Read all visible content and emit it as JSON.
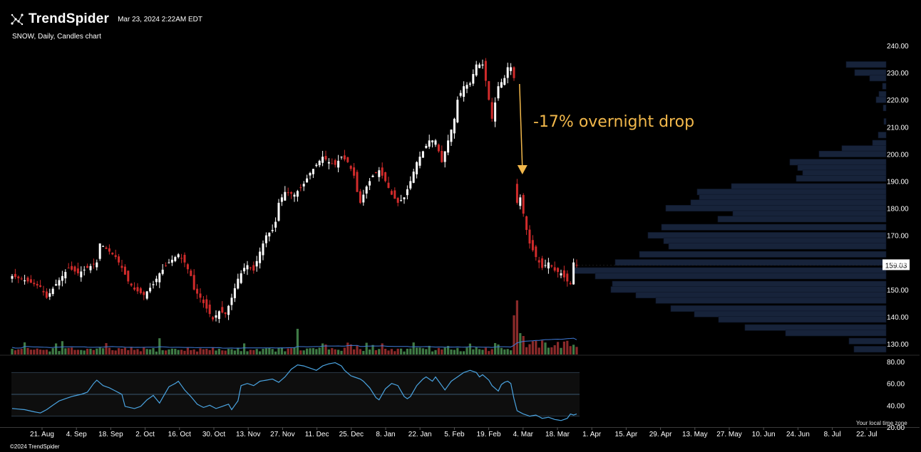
{
  "header": {
    "brand": "TrendSpider",
    "timestamp": "Mar 23, 2024 2:22AM EDT",
    "subtitle": "SNOW, Daily, Candles chart"
  },
  "footer": {
    "copyright": "©2024 TrendSpider",
    "timezone_label": "Your local time zone"
  },
  "colors": {
    "background": "#000000",
    "bull": "#ffffff",
    "bear": "#d12b2b",
    "volume_up": "#3f7a45",
    "volume_down": "#8a2a2a",
    "volume_ma": "#3f7bd8",
    "rsi_line": "#4aa3e0",
    "volume_profile": "#17233a",
    "annotation": "#f2b84b"
  },
  "chart_data": {
    "type": "candlestick",
    "symbol": "SNOW",
    "timeframe": "Daily",
    "price_axis": {
      "ticks": [
        "240.00",
        "230.00",
        "220.00",
        "210.00",
        "200.00",
        "190.00",
        "180.00",
        "170.00",
        "160.00",
        "150.00",
        "140.00",
        "130.00"
      ],
      "range": [
        123,
        242
      ],
      "last_price": "159.03"
    },
    "rsi_axis": {
      "ticks": [
        "80.00",
        "60.00",
        "40.00",
        "20.00"
      ],
      "range": [
        18,
        82
      ],
      "bands": [
        30,
        50,
        70
      ]
    },
    "x_axis": {
      "ticks": [
        "21. Aug",
        "4. Sep",
        "18. Sep",
        "2. Oct",
        "16. Oct",
        "30. Oct",
        "13. Nov",
        "27. Nov",
        "11. Dec",
        "25. Dec",
        "8. Jan",
        "22. Jan",
        "5. Feb",
        "19. Feb",
        "4. Mar",
        "18. Mar",
        "1. Apr",
        "15. Apr",
        "29. Apr",
        "13. May",
        "27. May",
        "10. Jun",
        "24. Jun",
        "8. Jul",
        "22. Jul"
      ]
    },
    "annotation": {
      "text": "-17% overnight drop"
    },
    "close_path": [
      [
        0,
        155
      ],
      [
        5,
        153
      ],
      [
        9,
        151
      ],
      [
        11,
        147
      ],
      [
        14,
        152
      ],
      [
        18,
        158
      ],
      [
        21,
        156
      ],
      [
        24,
        158
      ],
      [
        27,
        160
      ],
      [
        28,
        167
      ],
      [
        30,
        165
      ],
      [
        33,
        162
      ],
      [
        35,
        158
      ],
      [
        37,
        153
      ],
      [
        39,
        150
      ],
      [
        42,
        148
      ],
      [
        45,
        152
      ],
      [
        47,
        156
      ],
      [
        50,
        160
      ],
      [
        53,
        163
      ],
      [
        55,
        160
      ],
      [
        57,
        155
      ],
      [
        58,
        150
      ],
      [
        60,
        147
      ],
      [
        62,
        143
      ],
      [
        64,
        139
      ],
      [
        66,
        142
      ],
      [
        68,
        141
      ],
      [
        70,
        147
      ],
      [
        72,
        154
      ],
      [
        74,
        158
      ],
      [
        75,
        159
      ],
      [
        77,
        157
      ],
      [
        79,
        164
      ],
      [
        81,
        170
      ],
      [
        83,
        172
      ],
      [
        84,
        175
      ],
      [
        85,
        182
      ],
      [
        87,
        186
      ],
      [
        90,
        185
      ],
      [
        93,
        189
      ],
      [
        95,
        193
      ],
      [
        97,
        196
      ],
      [
        99,
        199
      ],
      [
        101,
        197
      ],
      [
        103,
        196
      ],
      [
        105,
        199
      ],
      [
        107,
        197
      ],
      [
        109,
        192
      ],
      [
        110,
        186
      ],
      [
        111,
        182
      ],
      [
        113,
        188
      ],
      [
        115,
        192
      ],
      [
        117,
        194
      ],
      [
        119,
        190
      ],
      [
        121,
        185
      ],
      [
        123,
        182
      ],
      [
        125,
        184
      ],
      [
        127,
        190
      ],
      [
        129,
        197
      ],
      [
        131,
        201
      ],
      [
        133,
        205
      ],
      [
        135,
        205
      ],
      [
        137,
        197
      ],
      [
        139,
        205
      ],
      [
        141,
        213
      ],
      [
        142,
        220
      ],
      [
        144,
        225
      ],
      [
        146,
        226
      ],
      [
        148,
        233
      ],
      [
        150,
        233
      ],
      [
        151,
        227
      ],
      [
        152,
        220
      ],
      [
        153,
        213
      ],
      [
        155,
        225
      ],
      [
        157,
        228
      ],
      [
        158,
        232
      ],
      [
        159,
        232
      ],
      [
        160,
        228
      ],
      [
        161,
        182
      ],
      [
        162,
        184
      ],
      [
        163,
        178
      ],
      [
        164,
        172
      ],
      [
        165,
        167
      ],
      [
        167,
        162
      ],
      [
        169,
        158
      ],
      [
        171,
        160
      ],
      [
        173,
        157
      ],
      [
        175,
        156
      ],
      [
        177,
        153
      ],
      [
        178,
        152
      ],
      [
        179,
        160
      ],
      [
        180,
        159
      ]
    ],
    "rsi_path": [
      [
        0,
        37
      ],
      [
        4,
        36
      ],
      [
        7,
        34
      ],
      [
        9,
        33
      ],
      [
        11,
        36
      ],
      [
        13,
        40
      ],
      [
        15,
        44
      ],
      [
        17,
        46
      ],
      [
        19,
        48
      ],
      [
        22,
        50
      ],
      [
        24,
        52
      ],
      [
        26,
        60
      ],
      [
        27,
        63
      ],
      [
        29,
        58
      ],
      [
        31,
        56
      ],
      [
        33,
        53
      ],
      [
        35,
        50
      ],
      [
        36,
        39
      ],
      [
        39,
        37
      ],
      [
        41,
        39
      ],
      [
        43,
        45
      ],
      [
        45,
        49
      ],
      [
        47,
        42
      ],
      [
        48,
        47
      ],
      [
        50,
        57
      ],
      [
        52,
        60
      ],
      [
        53,
        62
      ],
      [
        55,
        54
      ],
      [
        57,
        48
      ],
      [
        59,
        41
      ],
      [
        61,
        38
      ],
      [
        63,
        40
      ],
      [
        65,
        37
      ],
      [
        66,
        38
      ],
      [
        69,
        41
      ],
      [
        70,
        36
      ],
      [
        72,
        44
      ],
      [
        73,
        58
      ],
      [
        75,
        60
      ],
      [
        77,
        58
      ],
      [
        79,
        62
      ],
      [
        81,
        63
      ],
      [
        83,
        64
      ],
      [
        85,
        61
      ],
      [
        87,
        66
      ],
      [
        89,
        73
      ],
      [
        91,
        77
      ],
      [
        93,
        76
      ],
      [
        95,
        74
      ],
      [
        97,
        72
      ],
      [
        99,
        76
      ],
      [
        101,
        78
      ],
      [
        103,
        79
      ],
      [
        105,
        76
      ],
      [
        106,
        72
      ],
      [
        108,
        67
      ],
      [
        109,
        66
      ],
      [
        111,
        64
      ],
      [
        112,
        62
      ],
      [
        114,
        56
      ],
      [
        116,
        47
      ],
      [
        117,
        45
      ],
      [
        119,
        55
      ],
      [
        121,
        60
      ],
      [
        123,
        58
      ],
      [
        124,
        53
      ],
      [
        125,
        48
      ],
      [
        126,
        46
      ],
      [
        127,
        48
      ],
      [
        129,
        58
      ],
      [
        131,
        64
      ],
      [
        132,
        66
      ],
      [
        134,
        62
      ],
      [
        135,
        66
      ],
      [
        137,
        58
      ],
      [
        138,
        54
      ],
      [
        140,
        62
      ],
      [
        142,
        66
      ],
      [
        144,
        70
      ],
      [
        146,
        72
      ],
      [
        148,
        70
      ],
      [
        149,
        66
      ],
      [
        150,
        68
      ],
      [
        152,
        63
      ],
      [
        153,
        58
      ],
      [
        155,
        53
      ],
      [
        156,
        59
      ],
      [
        157,
        61
      ],
      [
        158,
        62
      ],
      [
        159,
        60
      ],
      [
        160,
        46
      ],
      [
        161,
        35
      ],
      [
        163,
        32
      ],
      [
        165,
        30
      ],
      [
        167,
        31
      ],
      [
        169,
        28
      ],
      [
        171,
        29
      ],
      [
        173,
        27
      ],
      [
        175,
        26
      ],
      [
        177,
        28
      ],
      [
        178,
        32
      ],
      [
        179,
        31
      ],
      [
        180,
        32
      ]
    ],
    "volume_profile": [
      {
        "price": 233,
        "length": 56
      },
      {
        "price": 230,
        "length": 44
      },
      {
        "price": 228,
        "length": 23
      },
      {
        "price": 225,
        "length": 5
      },
      {
        "price": 222,
        "length": 10
      },
      {
        "price": 220,
        "length": 14
      },
      {
        "price": 217,
        "length": 4
      },
      {
        "price": 212,
        "length": 3
      },
      {
        "price": 207,
        "length": 11
      },
      {
        "price": 204,
        "length": 19
      },
      {
        "price": 202,
        "length": 62
      },
      {
        "price": 200,
        "length": 94
      },
      {
        "price": 197,
        "length": 135
      },
      {
        "price": 195,
        "length": 124
      },
      {
        "price": 193,
        "length": 117
      },
      {
        "price": 191,
        "length": 126
      },
      {
        "price": 188,
        "length": 217
      },
      {
        "price": 186,
        "length": 265
      },
      {
        "price": 184,
        "length": 262
      },
      {
        "price": 182,
        "length": 274
      },
      {
        "price": 180,
        "length": 309
      },
      {
        "price": 178,
        "length": 215
      },
      {
        "price": 176,
        "length": 236
      },
      {
        "price": 173,
        "length": 315
      },
      {
        "price": 170,
        "length": 334
      },
      {
        "price": 168,
        "length": 312
      },
      {
        "price": 166,
        "length": 305
      },
      {
        "price": 163,
        "length": 346
      },
      {
        "price": 160,
        "length": 380
      },
      {
        "price": 157,
        "length": 440
      },
      {
        "price": 155,
        "length": 408
      },
      {
        "price": 152,
        "length": 384
      },
      {
        "price": 150,
        "length": 386
      },
      {
        "price": 148,
        "length": 351
      },
      {
        "price": 146,
        "length": 323
      },
      {
        "price": 143,
        "length": 302
      },
      {
        "price": 141,
        "length": 269
      },
      {
        "price": 139,
        "length": 235
      },
      {
        "price": 136,
        "length": 198
      },
      {
        "price": 134,
        "length": 141
      },
      {
        "price": 131,
        "length": 52
      },
      {
        "price": 128,
        "length": 45
      }
    ]
  }
}
